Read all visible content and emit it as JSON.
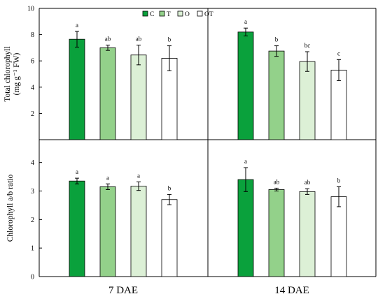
{
  "chart_data": {
    "type": "bar",
    "colors": {
      "C": "#0aa13c",
      "T": "#93d18a",
      "O": "#dcf0d6",
      "OT": "#ffffff",
      "axis": "#000000"
    },
    "legend": {
      "placement": "top-center",
      "entries": [
        "C",
        "T",
        "O",
        "OT"
      ]
    },
    "x_groups": [
      "7 DAE",
      "14 DAE"
    ],
    "panels": [
      {
        "ylabel": [
          "Total chlorophyll",
          "(mg g⁻¹ FW)"
        ],
        "ylim": [
          0,
          10
        ],
        "yticks": [
          2,
          4,
          6,
          8,
          10
        ],
        "groups": [
          {
            "name": "7 DAE",
            "bars": [
              {
                "series": "C",
                "value": 7.65,
                "error": 0.6,
                "letter": "a"
              },
              {
                "series": "T",
                "value": 7.0,
                "error": 0.2,
                "letter": "ab"
              },
              {
                "series": "O",
                "value": 6.45,
                "error": 0.75,
                "letter": "ab"
              },
              {
                "series": "OT",
                "value": 6.2,
                "error": 0.95,
                "letter": "b"
              }
            ]
          },
          {
            "name": "14 DAE",
            "bars": [
              {
                "series": "C",
                "value": 8.2,
                "error": 0.3,
                "letter": "a"
              },
              {
                "series": "T",
                "value": 6.75,
                "error": 0.4,
                "letter": "b"
              },
              {
                "series": "O",
                "value": 5.95,
                "error": 0.75,
                "letter": "bc"
              },
              {
                "series": "OT",
                "value": 5.3,
                "error": 0.8,
                "letter": "c"
              }
            ]
          }
        ]
      },
      {
        "ylabel": [
          "Chlorophyll a/b ratio"
        ],
        "ylim": [
          0,
          4.8
        ],
        "yticks": [
          0,
          1,
          2,
          3,
          4
        ],
        "groups": [
          {
            "name": "7 DAE",
            "bars": [
              {
                "series": "C",
                "value": 3.35,
                "error": 0.1,
                "letter": "a"
              },
              {
                "series": "T",
                "value": 3.15,
                "error": 0.1,
                "letter": "a"
              },
              {
                "series": "O",
                "value": 3.17,
                "error": 0.15,
                "letter": "a"
              },
              {
                "series": "OT",
                "value": 2.7,
                "error": 0.18,
                "letter": "b"
              }
            ]
          },
          {
            "name": "14 DAE",
            "bars": [
              {
                "series": "C",
                "value": 3.4,
                "error": 0.42,
                "letter": "a"
              },
              {
                "series": "T",
                "value": 3.05,
                "error": 0.05,
                "letter": "ab"
              },
              {
                "series": "O",
                "value": 2.98,
                "error": 0.1,
                "letter": "ab"
              },
              {
                "series": "OT",
                "value": 2.8,
                "error": 0.35,
                "letter": "b"
              }
            ]
          }
        ]
      }
    ]
  }
}
